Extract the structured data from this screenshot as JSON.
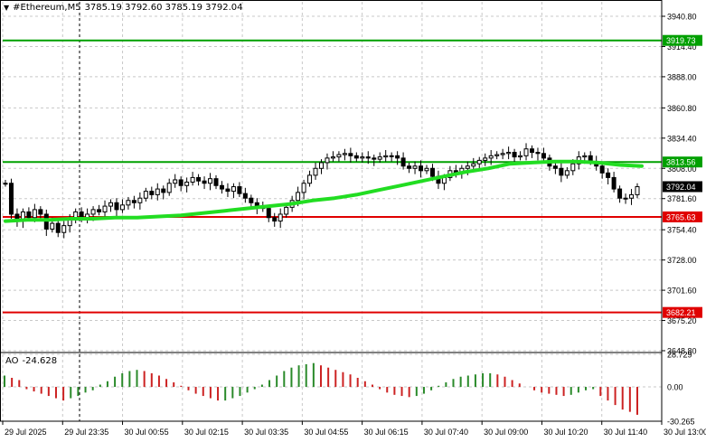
{
  "header": {
    "menu_arrow": "▼",
    "symbol": "#Ethereum,M5",
    "ohlc": "3785.19 3792.60 3785.19 3792.04"
  },
  "ao": {
    "name": "AO",
    "value": "-24.628",
    "axis_labels": [
      "28.729",
      "0.00",
      "-30.265"
    ]
  },
  "price_axis_labels": [
    "3940.80",
    "3914.40",
    "3888.00",
    "3860.80",
    "3834.40",
    "3808.00",
    "3781.60",
    "3754.40",
    "3728.00",
    "3701.60",
    "3675.20",
    "3648.80"
  ],
  "time_labels": [
    "29 Jul 2025",
    "29 Jul 23:35",
    "30 Jul 00:55",
    "30 Jul 02:15",
    "30 Jul 03:35",
    "30 Jul 04:55",
    "30 Jul 06:15",
    "30 Jul 07:40",
    "30 Jul 09:00",
    "30 Jul 10:20",
    "30 Jul 11:40",
    "30 Jul 13:00"
  ],
  "levels": [
    {
      "value": 3919.73,
      "label": "3919.73",
      "color": "#00a000"
    },
    {
      "value": 3813.56,
      "label": "3813.56",
      "color": "#00a000"
    },
    {
      "value": 3765.63,
      "label": "3765.63",
      "color": "#e00000"
    },
    {
      "value": 3682.21,
      "label": "3682.21",
      "color": "#e00000"
    }
  ],
  "current_price": {
    "value": 3792.04,
    "label": "3792.04"
  },
  "colors": {
    "ma": "#22dd22",
    "ao_up": "#2a8a2a",
    "ao_down": "#cc2222",
    "grid": "#c8c8c8",
    "candle": "#000000"
  },
  "chart_data": {
    "type": "candlestick",
    "price_range": [
      3648.8,
      3940.8
    ],
    "ao_range": [
      -30.265,
      28.729
    ],
    "closes": [
      3795,
      3768,
      3762,
      3770,
      3765,
      3772,
      3768,
      3755,
      3760,
      3752,
      3758,
      3763,
      3770,
      3765,
      3768,
      3772,
      3770,
      3775,
      3778,
      3772,
      3776,
      3780,
      3778,
      3782,
      3788,
      3785,
      3790,
      3787,
      3795,
      3798,
      3793,
      3796,
      3800,
      3797,
      3795,
      3799,
      3793,
      3790,
      3788,
      3792,
      3786,
      3782,
      3778,
      3774,
      3773,
      3765,
      3762,
      3768,
      3774,
      3780,
      3787,
      3795,
      3802,
      3808,
      3813,
      3817,
      3818,
      3820,
      3821,
      3819,
      3817,
      3818,
      3817,
      3816,
      3818,
      3819,
      3819,
      3817,
      3810,
      3808,
      3810,
      3806,
      3808,
      3801,
      3795,
      3800,
      3806,
      3804,
      3808,
      3810,
      3812,
      3815,
      3817,
      3819,
      3820,
      3821,
      3822,
      3818,
      3819,
      3825,
      3822,
      3821,
      3817,
      3810,
      3808,
      3802,
      3806,
      3812,
      3818,
      3819,
      3814,
      3810,
      3804,
      3800,
      3790,
      3782,
      3782,
      3785,
      3792
    ],
    "ma": [
      3762,
      3763,
      3763,
      3764,
      3764,
      3765,
      3765,
      3766,
      3767,
      3769,
      3771,
      3773,
      3775,
      3777,
      3780,
      3782,
      3785,
      3789,
      3793,
      3797,
      3801,
      3805,
      3808,
      3812,
      3813,
      3814,
      3814,
      3813,
      3811,
      3810
    ],
    "ao": [
      10,
      8,
      6,
      -2,
      -4,
      -6,
      -8,
      -10,
      -12,
      -10,
      -8,
      -5,
      -3,
      2,
      5,
      9,
      12,
      14,
      15,
      14,
      12,
      10,
      7,
      4,
      1,
      -3,
      -6,
      -8,
      -10,
      -12,
      -12,
      -10,
      -8,
      -5,
      -2,
      2,
      6,
      10,
      14,
      17,
      19,
      20,
      21,
      19,
      17,
      15,
      13,
      11,
      8,
      5,
      2,
      -2,
      -5,
      -7,
      -8,
      -9,
      -8,
      -6,
      -3,
      1,
      4,
      7,
      9,
      10,
      11,
      12,
      12,
      11,
      9,
      6,
      3,
      0,
      -3,
      -5,
      -6,
      -7,
      -8,
      -7,
      -5,
      -3,
      -2,
      -8,
      -12,
      -16,
      -20,
      -22,
      -24.6
    ]
  }
}
